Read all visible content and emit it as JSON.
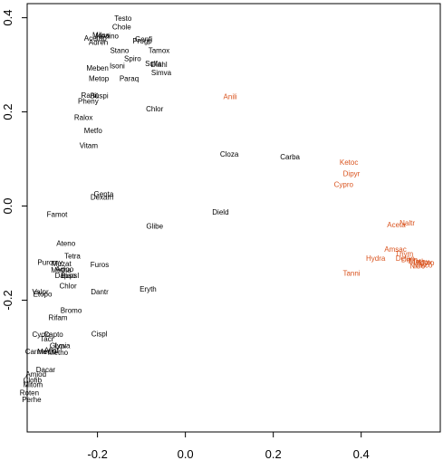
{
  "chart_data": {
    "type": "scatter",
    "title": "",
    "xlabel": "",
    "ylabel": "",
    "xlim": [
      -0.36,
      0.58
    ],
    "ylim": [
      -0.48,
      0.43
    ],
    "x_ticks": [
      {
        "value": -0.2,
        "label": "-0.2"
      },
      {
        "value": 0.0,
        "label": "0.0"
      },
      {
        "value": 0.2,
        "label": "0.2"
      },
      {
        "value": 0.4,
        "label": "0.4"
      }
    ],
    "y_ticks": [
      {
        "value": -0.2,
        "label": "-0.2"
      },
      {
        "value": 0.0,
        "label": "0.0"
      },
      {
        "value": 0.2,
        "label": "0.2"
      },
      {
        "value": 0.4,
        "label": "0.4"
      }
    ],
    "colors": {
      "group_1": "#000000",
      "group_2": "#d9531e"
    },
    "series": [
      {
        "color": "#000000",
        "points": [
          {
            "label": "Testo",
            "x": -0.142,
            "y": 0.398
          },
          {
            "label": "Chole",
            "x": -0.145,
            "y": 0.38
          },
          {
            "label": "Milna",
            "x": -0.192,
            "y": 0.363
          },
          {
            "label": "Neaino",
            "x": -0.178,
            "y": 0.361
          },
          {
            "label": "Acetap",
            "x": -0.205,
            "y": 0.356
          },
          {
            "label": "Genfi",
            "x": -0.095,
            "y": 0.354
          },
          {
            "label": "Progp",
            "x": -0.098,
            "y": 0.35
          },
          {
            "label": "Adren",
            "x": -0.198,
            "y": 0.347
          },
          {
            "label": "Stano",
            "x": -0.15,
            "y": 0.33
          },
          {
            "label": "Tamox",
            "x": -0.06,
            "y": 0.33
          },
          {
            "label": "Spiro",
            "x": -0.12,
            "y": 0.313
          },
          {
            "label": "Sulfa",
            "x": -0.073,
            "y": 0.302
          },
          {
            "label": "Diahl",
            "x": -0.06,
            "y": 0.3
          },
          {
            "label": "Isoni",
            "x": -0.155,
            "y": 0.297
          },
          {
            "label": "Meben",
            "x": -0.2,
            "y": 0.292
          },
          {
            "label": "Simva",
            "x": -0.055,
            "y": 0.283
          },
          {
            "label": "Metop",
            "x": -0.197,
            "y": 0.27
          },
          {
            "label": "Paraq",
            "x": -0.128,
            "y": 0.27
          },
          {
            "label": "Ranit",
            "x": -0.218,
            "y": 0.235
          },
          {
            "label": "Buspi",
            "x": -0.196,
            "y": 0.234
          },
          {
            "label": "Pheny",
            "x": -0.221,
            "y": 0.222
          },
          {
            "label": "Chlor",
            "x": -0.07,
            "y": 0.206
          },
          {
            "label": "Ralox",
            "x": -0.232,
            "y": 0.188
          },
          {
            "label": "Metfo",
            "x": -0.21,
            "y": 0.16
          },
          {
            "label": "Vitam",
            "x": -0.22,
            "y": 0.128
          },
          {
            "label": "Cloza",
            "x": 0.1,
            "y": 0.11
          },
          {
            "label": "Carba",
            "x": 0.238,
            "y": 0.104
          },
          {
            "label": "Genta",
            "x": -0.186,
            "y": 0.025
          },
          {
            "label": "Dexam",
            "x": -0.19,
            "y": 0.018
          },
          {
            "label": "Dield",
            "x": 0.08,
            "y": -0.013
          },
          {
            "label": "Famot",
            "x": -0.292,
            "y": -0.018
          },
          {
            "label": "Glibe",
            "x": -0.07,
            "y": -0.043
          },
          {
            "label": "Ateno",
            "x": -0.272,
            "y": -0.08
          },
          {
            "label": "Tetra",
            "x": -0.257,
            "y": -0.107
          },
          {
            "label": "Puromy",
            "x": -0.308,
            "y": -0.12
          },
          {
            "label": "Muzat",
            "x": -0.282,
            "y": -0.123
          },
          {
            "label": "Furos",
            "x": -0.195,
            "y": -0.125
          },
          {
            "label": "Acipo",
            "x": -0.275,
            "y": -0.135
          },
          {
            "label": "Metha",
            "x": -0.283,
            "y": -0.137
          },
          {
            "label": "Dapso",
            "x": -0.273,
            "y": -0.148
          },
          {
            "label": "Bupsl",
            "x": -0.263,
            "y": -0.148
          },
          {
            "label": "Chlor",
            "x": -0.267,
            "y": -0.17
          },
          {
            "label": "Eryth",
            "x": -0.085,
            "y": -0.177
          },
          {
            "label": "Valpr",
            "x": -0.33,
            "y": -0.183
          },
          {
            "label": "Dantr",
            "x": -0.195,
            "y": -0.183
          },
          {
            "label": "Etopo",
            "x": -0.325,
            "y": -0.188
          },
          {
            "label": "Bromo",
            "x": -0.26,
            "y": -0.222
          },
          {
            "label": "Rifam",
            "x": -0.29,
            "y": -0.238
          },
          {
            "label": "Cispl",
            "x": -0.196,
            "y": -0.272
          },
          {
            "label": "Cyclo",
            "x": -0.328,
            "y": -0.273
          },
          {
            "label": "Capto",
            "x": -0.3,
            "y": -0.273
          },
          {
            "label": "Tacr",
            "x": -0.315,
            "y": -0.283
          },
          {
            "label": "Glypi",
            "x": -0.29,
            "y": -0.297
          },
          {
            "label": "Lova",
            "x": -0.28,
            "y": -0.297
          },
          {
            "label": "Aflat",
            "x": -0.305,
            "y": -0.307
          },
          {
            "label": "Carmu",
            "x": -0.34,
            "y": -0.31
          },
          {
            "label": "Meclo",
            "x": -0.315,
            "y": -0.31
          },
          {
            "label": "Metho",
            "x": -0.29,
            "y": -0.312
          },
          {
            "label": "Dacar",
            "x": -0.318,
            "y": -0.348
          },
          {
            "label": "Amiod",
            "x": -0.34,
            "y": -0.358
          },
          {
            "label": "Clofib",
            "x": -0.348,
            "y": -0.37
          },
          {
            "label": "Mitom",
            "x": -0.347,
            "y": -0.38
          },
          {
            "label": "Roten",
            "x": -0.355,
            "y": -0.397
          },
          {
            "label": "Perhe",
            "x": -0.35,
            "y": -0.412
          }
        ]
      },
      {
        "color": "#d9531e",
        "points": [
          {
            "label": "Anili",
            "x": 0.102,
            "y": 0.232
          },
          {
            "label": "Ketoc",
            "x": 0.372,
            "y": 0.092
          },
          {
            "label": "Dipyr",
            "x": 0.378,
            "y": 0.068
          },
          {
            "label": "Cypro",
            "x": 0.36,
            "y": 0.045
          },
          {
            "label": "Naltr",
            "x": 0.505,
            "y": -0.037
          },
          {
            "label": "Aceta",
            "x": 0.48,
            "y": -0.04
          },
          {
            "label": "Amsac",
            "x": 0.478,
            "y": -0.092
          },
          {
            "label": "Thym",
            "x": 0.498,
            "y": -0.102
          },
          {
            "label": "Hydra",
            "x": 0.433,
            "y": -0.112
          },
          {
            "label": "Delan",
            "x": 0.5,
            "y": -0.112
          },
          {
            "label": "Dipin",
            "x": 0.51,
            "y": -0.114
          },
          {
            "label": "Methy",
            "x": 0.532,
            "y": -0.118
          },
          {
            "label": "Digox",
            "x": 0.54,
            "y": -0.12
          },
          {
            "label": "Myro",
            "x": 0.548,
            "y": -0.121
          },
          {
            "label": "Narco",
            "x": 0.54,
            "y": -0.126
          },
          {
            "label": "Nitro",
            "x": 0.528,
            "y": -0.128
          },
          {
            "label": "Tanni",
            "x": 0.378,
            "y": -0.143
          }
        ]
      }
    ]
  }
}
